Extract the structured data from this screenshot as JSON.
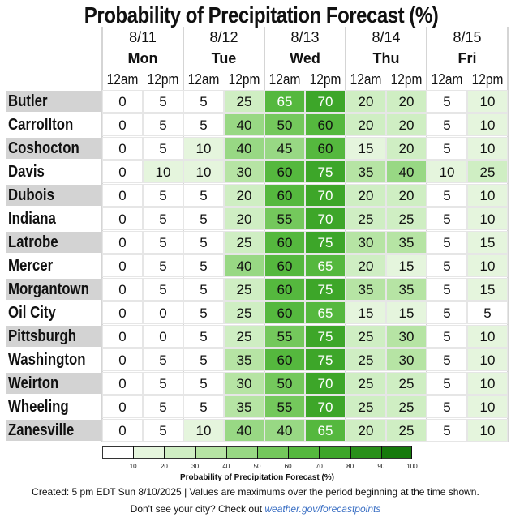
{
  "chart_data": {
    "type": "heatmap",
    "title": "Probability of Precipitation Forecast (%)",
    "days": [
      {
        "date": "8/11",
        "day": "Mon"
      },
      {
        "date": "8/12",
        "day": "Tue"
      },
      {
        "date": "8/13",
        "day": "Wed"
      },
      {
        "date": "8/14",
        "day": "Thu"
      },
      {
        "date": "8/15",
        "day": "Fri"
      }
    ],
    "periods": [
      "12am",
      "12pm"
    ],
    "cities": [
      "Butler",
      "Carrollton",
      "Coshocton",
      "Davis",
      "Dubois",
      "Indiana",
      "Latrobe",
      "Mercer",
      "Morgantown",
      "Oil City",
      "Pittsburgh",
      "Washington",
      "Weirton",
      "Wheeling",
      "Zanesville"
    ],
    "values": [
      [
        0,
        5,
        5,
        25,
        65,
        70,
        20,
        20,
        5,
        10
      ],
      [
        0,
        5,
        5,
        40,
        50,
        60,
        20,
        20,
        5,
        10
      ],
      [
        0,
        5,
        10,
        40,
        45,
        60,
        15,
        20,
        5,
        10
      ],
      [
        0,
        10,
        10,
        30,
        60,
        75,
        35,
        40,
        10,
        25
      ],
      [
        0,
        5,
        5,
        20,
        60,
        70,
        20,
        20,
        5,
        10
      ],
      [
        0,
        5,
        5,
        20,
        55,
        70,
        25,
        25,
        5,
        10
      ],
      [
        0,
        5,
        5,
        25,
        60,
        75,
        30,
        35,
        5,
        15
      ],
      [
        0,
        5,
        5,
        40,
        60,
        65,
        20,
        15,
        5,
        10
      ],
      [
        0,
        5,
        5,
        25,
        60,
        75,
        35,
        35,
        5,
        15
      ],
      [
        0,
        0,
        5,
        25,
        60,
        65,
        15,
        15,
        5,
        5
      ],
      [
        0,
        0,
        5,
        25,
        55,
        75,
        25,
        30,
        5,
        10
      ],
      [
        0,
        5,
        5,
        35,
        60,
        75,
        25,
        30,
        5,
        10
      ],
      [
        0,
        5,
        5,
        30,
        50,
        70,
        25,
        25,
        5,
        10
      ],
      [
        0,
        5,
        5,
        35,
        55,
        70,
        25,
        25,
        5,
        10
      ],
      [
        0,
        5,
        10,
        40,
        40,
        65,
        20,
        25,
        5,
        10
      ]
    ],
    "legend": {
      "title": "Probability of Precipitation Forecast (%)",
      "ticks": [
        "10",
        "20",
        "30",
        "40",
        "50",
        "60",
        "70",
        "80",
        "90",
        "100"
      ],
      "colors": [
        "#ffffff",
        "#e5f5dd",
        "#cfeec3",
        "#b6e4a4",
        "#98d884",
        "#74c85c",
        "#55b83e",
        "#3da629",
        "#29901a",
        "#167a0c"
      ]
    }
  },
  "footnote": "Created: 5 pm EDT Sun 8/10/2025  |  Values are maximums over the period beginning at the time shown.",
  "cta": {
    "prefix": "Don't see your city? Check out ",
    "link": "weather.gov/forecastpoints"
  }
}
